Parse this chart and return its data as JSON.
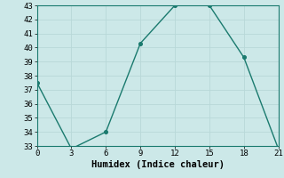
{
  "x": [
    0,
    3,
    6,
    9,
    12,
    15,
    18,
    21
  ],
  "y": [
    37.5,
    32.8,
    34.0,
    40.3,
    43.0,
    43.0,
    39.3,
    32.8
  ],
  "line_color": "#1a7a6e",
  "marker_color": "#1a7a6e",
  "bg_color": "#cce8e8",
  "grid_color": "#b8d8d8",
  "xlabel": "Humidex (Indice chaleur)",
  "xlim": [
    0,
    21
  ],
  "ylim": [
    33,
    43
  ],
  "xticks": [
    0,
    3,
    6,
    9,
    12,
    15,
    18,
    21
  ],
  "yticks": [
    33,
    34,
    35,
    36,
    37,
    38,
    39,
    40,
    41,
    42,
    43
  ],
  "tick_fontsize": 6.5,
  "xlabel_fontsize": 7.5,
  "font_family": "monospace"
}
